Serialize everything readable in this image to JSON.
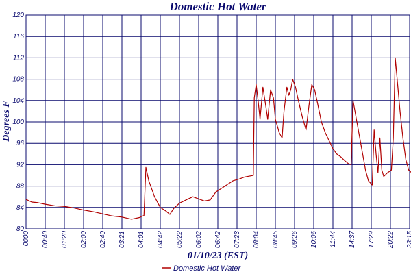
{
  "chart_data": {
    "type": "line",
    "title": "Domestic Hot Water",
    "xlabel": "01/10/23 (EST)",
    "ylabel": "Degrees F",
    "ylim": [
      80,
      120
    ],
    "y_ticks": [
      80,
      84,
      88,
      92,
      96,
      100,
      104,
      108,
      112,
      116,
      120
    ],
    "x_tick_labels": [
      "0000",
      "0040",
      "0120",
      "0200",
      "0240",
      "0321",
      "0401",
      "0442",
      "0522",
      "0602",
      "0642",
      "0723",
      "0804",
      "0845",
      "0926",
      "1006",
      "1144",
      "1437",
      "1729",
      "2022",
      "2315"
    ],
    "x_tick_labels_display": [
      "0000",
      "00:40",
      "01:20",
      "02:00",
      "02:40",
      "03:21",
      "04:01",
      "04:42",
      "05:22",
      "06:02",
      "06:42",
      "07:23",
      "08:04",
      "08:45",
      "09:26",
      "10:06",
      "11:44",
      "14:37",
      "17:29",
      "20:22",
      "23:15"
    ],
    "grid": true,
    "legend_position": "bottom",
    "colors": {
      "series": "#b00000",
      "grid": "#0a0a6e",
      "text": "#0a0a6e"
    },
    "series": [
      {
        "name": "Domestic Hot Water",
        "points": [
          [
            0.0,
            85.5
          ],
          [
            0.3,
            85.0
          ],
          [
            0.6,
            84.9
          ],
          [
            1.0,
            84.6
          ],
          [
            1.5,
            84.3
          ],
          [
            2.0,
            84.2
          ],
          [
            2.5,
            83.9
          ],
          [
            3.0,
            83.5
          ],
          [
            3.5,
            83.2
          ],
          [
            4.0,
            82.8
          ],
          [
            4.5,
            82.4
          ],
          [
            5.0,
            82.2
          ],
          [
            5.5,
            81.8
          ],
          [
            5.9,
            82.1
          ],
          [
            6.15,
            82.5
          ],
          [
            6.25,
            91.5
          ],
          [
            6.4,
            89.0
          ],
          [
            6.7,
            86.0
          ],
          [
            7.0,
            84.0
          ],
          [
            7.3,
            83.3
          ],
          [
            7.5,
            82.7
          ],
          [
            7.7,
            83.8
          ],
          [
            8.0,
            84.8
          ],
          [
            8.4,
            85.5
          ],
          [
            8.7,
            86.0
          ],
          [
            9.0,
            85.6
          ],
          [
            9.3,
            85.2
          ],
          [
            9.6,
            85.4
          ],
          [
            9.9,
            86.9
          ],
          [
            10.2,
            87.6
          ],
          [
            10.5,
            88.3
          ],
          [
            10.8,
            89.0
          ],
          [
            11.1,
            89.3
          ],
          [
            11.4,
            89.7
          ],
          [
            11.7,
            89.9
          ],
          [
            11.85,
            90.0
          ],
          [
            11.9,
            104.5
          ],
          [
            12.0,
            107.0
          ],
          [
            12.1,
            104.0
          ],
          [
            12.2,
            100.5
          ],
          [
            12.35,
            106.5
          ],
          [
            12.5,
            103.0
          ],
          [
            12.6,
            100.5
          ],
          [
            12.75,
            106.0
          ],
          [
            12.9,
            104.5
          ],
          [
            13.0,
            100.5
          ],
          [
            13.2,
            98.0
          ],
          [
            13.35,
            97.0
          ],
          [
            13.45,
            102.0
          ],
          [
            13.6,
            106.5
          ],
          [
            13.7,
            105.0
          ],
          [
            13.8,
            106.0
          ],
          [
            13.9,
            108.0
          ],
          [
            14.05,
            106.5
          ],
          [
            14.2,
            104.0
          ],
          [
            14.4,
            101.0
          ],
          [
            14.6,
            98.5
          ],
          [
            14.75,
            103.0
          ],
          [
            14.9,
            107.0
          ],
          [
            15.05,
            106.0
          ],
          [
            15.2,
            103.5
          ],
          [
            15.4,
            100.0
          ],
          [
            15.6,
            98.0
          ],
          [
            15.8,
            96.5
          ],
          [
            16.0,
            95.0
          ],
          [
            16.2,
            94.0
          ],
          [
            16.4,
            93.5
          ],
          [
            16.6,
            92.8
          ],
          [
            16.8,
            92.2
          ],
          [
            16.95,
            92.0
          ],
          [
            17.05,
            104.0
          ],
          [
            17.2,
            101.0
          ],
          [
            17.4,
            97.0
          ],
          [
            17.55,
            94.0
          ],
          [
            17.7,
            91.0
          ],
          [
            17.85,
            89.0
          ],
          [
            18.05,
            88.2
          ],
          [
            18.15,
            98.5
          ],
          [
            18.25,
            94.0
          ],
          [
            18.35,
            90.5
          ],
          [
            18.45,
            97.0
          ],
          [
            18.55,
            91.0
          ],
          [
            18.65,
            89.8
          ],
          [
            18.85,
            90.5
          ],
          [
            19.05,
            91.0
          ],
          [
            19.15,
            97.0
          ],
          [
            19.25,
            112.0
          ],
          [
            19.35,
            108.0
          ],
          [
            19.5,
            102.0
          ],
          [
            19.65,
            97.0
          ],
          [
            19.8,
            93.0
          ],
          [
            19.95,
            91.0
          ],
          [
            20.1,
            90.5
          ],
          [
            20.25,
            103.5
          ],
          [
            20.35,
            96.0
          ],
          [
            20.45,
            91.0
          ],
          [
            20.55,
            105.0
          ],
          [
            20.65,
            97.0
          ],
          [
            20.75,
            109.0
          ],
          [
            20.85,
            100.0
          ],
          [
            20.95,
            94.5
          ],
          [
            21.05,
            107.5
          ],
          [
            21.15,
            102.0
          ],
          [
            21.25,
            110.0
          ],
          [
            21.35,
            104.0
          ],
          [
            21.45,
            99.0
          ],
          [
            21.55,
            96.0
          ],
          [
            21.7,
            92.5
          ],
          [
            21.85,
            91.0
          ],
          [
            22.0,
            89.5
          ],
          [
            22.2,
            88.5
          ],
          [
            22.4,
            87.8
          ],
          [
            22.6,
            87.2
          ],
          [
            22.8,
            86.8
          ],
          [
            22.9,
            88.0
          ],
          [
            23.0,
            103.5
          ],
          [
            23.1,
            104.5
          ],
          [
            23.2,
            100.0
          ],
          [
            23.3,
            95.0
          ],
          [
            23.35,
            90.0
          ]
        ]
      }
    ]
  }
}
